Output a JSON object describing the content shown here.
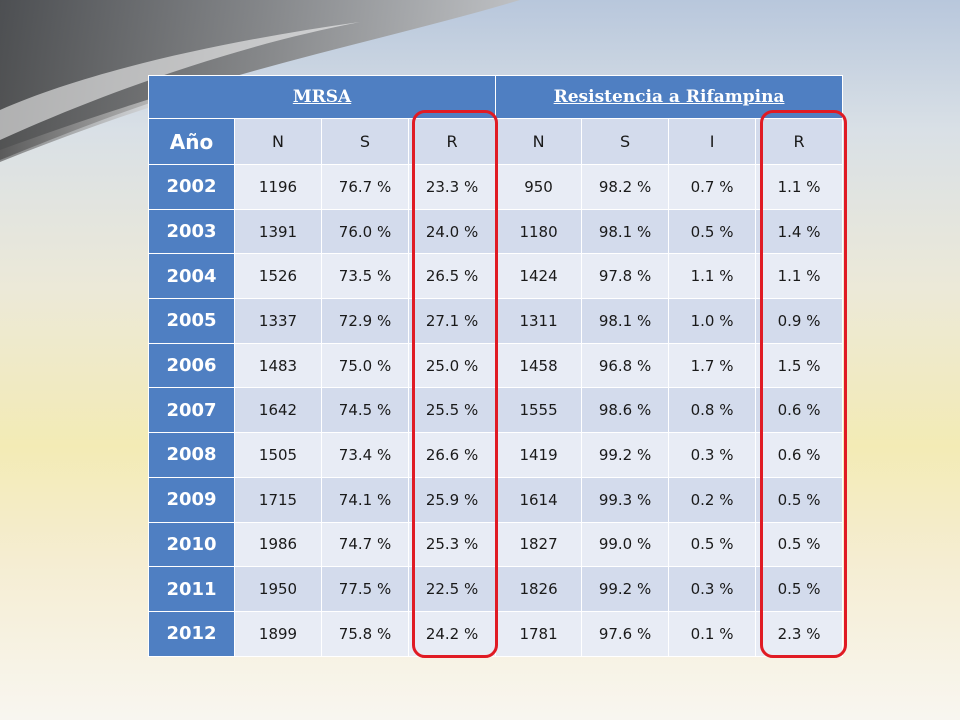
{
  "table": {
    "group_headers": {
      "mrsa": "MRSA",
      "rifampina": "Resistencia a Rifampina"
    },
    "columns": {
      "year": "Año",
      "mrsa_n": "N",
      "mrsa_s": "S",
      "mrsa_r": "R",
      "rif_n": "N",
      "rif_s": "S",
      "rif_i": "I",
      "rif_r": "R"
    },
    "rows": [
      {
        "year": "2002",
        "mrsa_n": "1196",
        "mrsa_s": "76.7 %",
        "mrsa_r": "23.3 %",
        "rif_n": "950",
        "rif_s": "98.2 %",
        "rif_i": "0.7 %",
        "rif_r": "1.1 %"
      },
      {
        "year": "2003",
        "mrsa_n": "1391",
        "mrsa_s": "76.0 %",
        "mrsa_r": "24.0 %",
        "rif_n": "1180",
        "rif_s": "98.1 %",
        "rif_i": "0.5 %",
        "rif_r": "1.4 %"
      },
      {
        "year": "2004",
        "mrsa_n": "1526",
        "mrsa_s": "73.5 %",
        "mrsa_r": "26.5 %",
        "rif_n": "1424",
        "rif_s": "97.8 %",
        "rif_i": "1.1 %",
        "rif_r": "1.1 %"
      },
      {
        "year": "2005",
        "mrsa_n": "1337",
        "mrsa_s": "72.9 %",
        "mrsa_r": "27.1 %",
        "rif_n": "1311",
        "rif_s": "98.1 %",
        "rif_i": "1.0 %",
        "rif_r": "0.9 %"
      },
      {
        "year": "2006",
        "mrsa_n": "1483",
        "mrsa_s": "75.0 %",
        "mrsa_r": "25.0 %",
        "rif_n": "1458",
        "rif_s": "96.8 %",
        "rif_i": "1.7 %",
        "rif_r": "1.5 %"
      },
      {
        "year": "2007",
        "mrsa_n": "1642",
        "mrsa_s": "74.5 %",
        "mrsa_r": "25.5 %",
        "rif_n": "1555",
        "rif_s": "98.6 %",
        "rif_i": "0.8 %",
        "rif_r": "0.6 %"
      },
      {
        "year": "2008",
        "mrsa_n": "1505",
        "mrsa_s": "73.4 %",
        "mrsa_r": "26.6 %",
        "rif_n": "1419",
        "rif_s": "99.2 %",
        "rif_i": "0.3 %",
        "rif_r": "0.6 %"
      },
      {
        "year": "2009",
        "mrsa_n": "1715",
        "mrsa_s": "74.1 %",
        "mrsa_r": "25.9 %",
        "rif_n": "1614",
        "rif_s": "99.3 %",
        "rif_i": "0.2 %",
        "rif_r": "0.5 %"
      },
      {
        "year": "2010",
        "mrsa_n": "1986",
        "mrsa_s": "74.7 %",
        "mrsa_r": "25.3 %",
        "rif_n": "1827",
        "rif_s": "99.0 %",
        "rif_i": "0.5 %",
        "rif_r": "0.5 %"
      },
      {
        "year": "2011",
        "mrsa_n": "1950",
        "mrsa_s": "77.5 %",
        "mrsa_r": "22.5 %",
        "rif_n": "1826",
        "rif_s": "99.2 %",
        "rif_i": "0.3 %",
        "rif_r": "0.5 %"
      },
      {
        "year": "2012",
        "mrsa_n": "1899",
        "mrsa_s": "75.8 %",
        "mrsa_r": "24.2 %",
        "rif_n": "1781",
        "rif_s": "97.6 %",
        "rif_i": "0.1 %",
        "rif_r": "2.3 %"
      }
    ]
  },
  "colors": {
    "header_blue": "#4f7fc2",
    "row_light": "#e8ecf5",
    "row_dark": "#d3dbec",
    "highlight_red": "#e01b24"
  }
}
